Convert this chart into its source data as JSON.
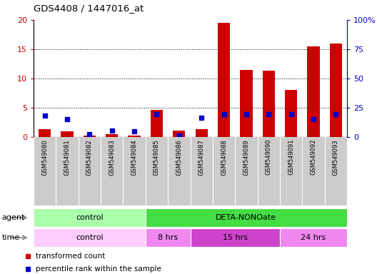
{
  "title": "GDS4408 / 1447016_at",
  "samples": [
    "GSM549080",
    "GSM549081",
    "GSM549082",
    "GSM549083",
    "GSM549084",
    "GSM549085",
    "GSM549086",
    "GSM549087",
    "GSM549088",
    "GSM549089",
    "GSM549090",
    "GSM549091",
    "GSM549092",
    "GSM549093"
  ],
  "transformed_count": [
    1.4,
    1.0,
    0.2,
    0.5,
    0.3,
    4.6,
    1.1,
    1.4,
    19.5,
    11.5,
    11.3,
    8.0,
    15.5,
    16.0
  ],
  "percentile_rank": [
    18.5,
    15.5,
    2.5,
    5.6,
    5.0,
    19.8,
    1.2,
    16.2,
    19.8,
    19.8,
    19.8,
    19.8,
    15.5,
    19.8
  ],
  "bar_color": "#cc0000",
  "dot_color": "#0000cc",
  "ylim_left": [
    0,
    20
  ],
  "ylim_right": [
    0,
    100
  ],
  "yticks_left": [
    0,
    5,
    10,
    15,
    20
  ],
  "yticks_right": [
    0,
    25,
    50,
    75,
    100
  ],
  "ytick_labels_right": [
    "0",
    "25",
    "50",
    "75",
    "100%"
  ],
  "agent_groups": [
    {
      "label": "control",
      "start": 0,
      "end": 5,
      "color": "#aaffaa"
    },
    {
      "label": "DETA-NONOate",
      "start": 5,
      "end": 14,
      "color": "#44dd44"
    }
  ],
  "time_groups": [
    {
      "label": "control",
      "start": 0,
      "end": 5,
      "color": "#ffccff"
    },
    {
      "label": "8 hrs",
      "start": 5,
      "end": 7,
      "color": "#ee88ee"
    },
    {
      "label": "15 hrs",
      "start": 7,
      "end": 11,
      "color": "#cc44cc"
    },
    {
      "label": "24 hrs",
      "start": 11,
      "end": 14,
      "color": "#ee88ee"
    }
  ],
  "legend_items": [
    {
      "label": "transformed count",
      "color": "#cc0000"
    },
    {
      "label": "percentile rank within the sample",
      "color": "#0000cc"
    }
  ],
  "bg_color": "#ffffff",
  "tick_color_left": "#cc0000",
  "tick_color_right": "#0000cc",
  "label_bg": "#cccccc"
}
